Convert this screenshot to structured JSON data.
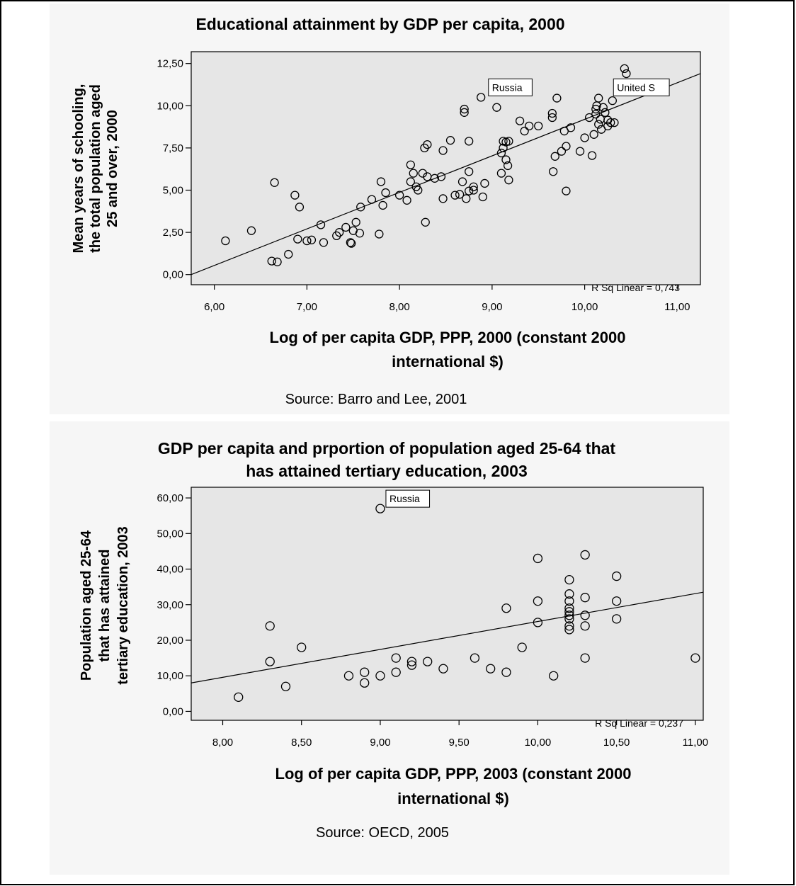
{
  "chart_data": [
    {
      "type": "scatter",
      "title": "Educational attainment by GDP per capita, 2000",
      "xlabel_lines": [
        "Log of per capita GDP, PPP, 2000 (constant 2000",
        "international $)"
      ],
      "ylabel_lines": [
        "Mean years of schooling,",
        "the total population aged",
        "25 and over, 2000"
      ],
      "xlim": [
        5.75,
        11.25
      ],
      "ylim": [
        -0.6,
        13.2
      ],
      "x_ticks": [
        6,
        7,
        8,
        9,
        10,
        11
      ],
      "x_tick_labels": [
        "6,00",
        "7,00",
        "8,00",
        "9,00",
        "10,00",
        "11,00"
      ],
      "y_ticks": [
        0,
        2.5,
        5,
        7.5,
        10,
        12.5
      ],
      "y_tick_labels": [
        "0,00",
        "2,50",
        "5,00",
        "7,50",
        "10,00",
        "12,50"
      ],
      "grid": false,
      "fit_line": {
        "x": [
          5.75,
          11.25
        ],
        "y": [
          0.0,
          11.9
        ]
      },
      "r_squared_label": "R Sq Linear = 0,743",
      "annotations": [
        {
          "label": "Russia",
          "x": 8.9,
          "y": 10.5
        },
        {
          "label": "United S",
          "x": 10.25,
          "y": 10.5
        }
      ],
      "source": "Source: Barro and Lee, 2001",
      "points": [
        [
          6.12,
          2.0
        ],
        [
          6.4,
          2.6
        ],
        [
          6.65,
          5.45
        ],
        [
          6.62,
          0.8
        ],
        [
          6.68,
          0.75
        ],
        [
          6.8,
          1.2
        ],
        [
          6.87,
          4.7
        ],
        [
          6.9,
          2.1
        ],
        [
          6.92,
          4.0
        ],
        [
          7.0,
          2.0
        ],
        [
          7.05,
          2.05
        ],
        [
          7.15,
          2.95
        ],
        [
          7.18,
          1.9
        ],
        [
          7.32,
          2.3
        ],
        [
          7.35,
          2.5
        ],
        [
          7.42,
          2.8
        ],
        [
          7.47,
          1.9
        ],
        [
          7.48,
          1.85
        ],
        [
          7.5,
          2.6
        ],
        [
          7.53,
          3.1
        ],
        [
          7.57,
          2.45
        ],
        [
          7.58,
          4.0
        ],
        [
          7.7,
          4.45
        ],
        [
          7.78,
          2.4
        ],
        [
          7.8,
          5.5
        ],
        [
          7.82,
          4.1
        ],
        [
          7.85,
          4.85
        ],
        [
          8.0,
          4.7
        ],
        [
          8.08,
          4.4
        ],
        [
          8.12,
          5.5
        ],
        [
          8.12,
          6.5
        ],
        [
          8.15,
          6.0
        ],
        [
          8.18,
          5.2
        ],
        [
          8.2,
          5.0
        ],
        [
          8.25,
          6.0
        ],
        [
          8.27,
          7.5
        ],
        [
          8.3,
          7.7
        ],
        [
          8.3,
          5.8
        ],
        [
          8.28,
          3.1
        ],
        [
          8.38,
          5.7
        ],
        [
          8.45,
          5.8
        ],
        [
          8.47,
          4.5
        ],
        [
          8.47,
          7.35
        ],
        [
          8.55,
          7.95
        ],
        [
          8.6,
          4.7
        ],
        [
          8.65,
          4.75
        ],
        [
          8.68,
          5.5
        ],
        [
          8.7,
          9.6
        ],
        [
          8.7,
          9.8
        ],
        [
          8.72,
          4.5
        ],
        [
          8.75,
          7.9
        ],
        [
          8.75,
          4.95
        ],
        [
          8.75,
          6.1
        ],
        [
          8.8,
          5.0
        ],
        [
          8.8,
          5.2
        ],
        [
          8.88,
          10.5
        ],
        [
          8.9,
          4.6
        ],
        [
          8.92,
          5.4
        ],
        [
          9.05,
          9.9
        ],
        [
          9.1,
          6.0
        ],
        [
          9.1,
          7.2
        ],
        [
          9.12,
          7.5
        ],
        [
          9.12,
          7.9
        ],
        [
          9.15,
          7.85
        ],
        [
          9.15,
          6.8
        ],
        [
          9.17,
          6.45
        ],
        [
          9.18,
          5.6
        ],
        [
          9.18,
          7.9
        ],
        [
          9.3,
          9.1
        ],
        [
          9.35,
          8.5
        ],
        [
          9.4,
          8.8
        ],
        [
          9.5,
          8.8
        ],
        [
          9.65,
          9.3
        ],
        [
          9.65,
          9.55
        ],
        [
          9.66,
          6.1
        ],
        [
          9.68,
          7.0
        ],
        [
          9.7,
          10.45
        ],
        [
          9.75,
          7.3
        ],
        [
          9.78,
          8.5
        ],
        [
          9.8,
          4.95
        ],
        [
          9.8,
          7.6
        ],
        [
          9.85,
          8.7
        ],
        [
          9.95,
          7.3
        ],
        [
          10.0,
          8.1
        ],
        [
          10.05,
          9.3
        ],
        [
          10.08,
          7.05
        ],
        [
          10.1,
          8.3
        ],
        [
          10.12,
          9.5
        ],
        [
          10.12,
          9.8
        ],
        [
          10.13,
          10.0
        ],
        [
          10.15,
          10.45
        ],
        [
          10.15,
          8.9
        ],
        [
          10.17,
          9.2
        ],
        [
          10.18,
          8.6
        ],
        [
          10.2,
          9.9
        ],
        [
          10.22,
          9.6
        ],
        [
          10.25,
          8.8
        ],
        [
          10.25,
          9.15
        ],
        [
          10.28,
          9.0
        ],
        [
          10.3,
          10.3
        ],
        [
          10.32,
          9.0
        ],
        [
          10.43,
          12.2
        ],
        [
          10.45,
          11.9
        ]
      ]
    },
    {
      "type": "scatter",
      "title_lines": [
        "GDP per capita and prportion of population aged 25-64 that",
        "has attained tertiary education,  2003"
      ],
      "xlabel_lines": [
        "Log of per capita GDP, PPP, 2003 (constant 2000",
        "international $)"
      ],
      "ylabel_lines": [
        "Population aged 25-64",
        "that has attained",
        "tertiary education, 2003"
      ],
      "xlim": [
        7.8,
        11.05
      ],
      "ylim": [
        -2.5,
        63
      ],
      "x_ticks": [
        8.0,
        8.5,
        9.0,
        9.5,
        10.0,
        10.5,
        11.0
      ],
      "x_tick_labels": [
        "8,00",
        "8,50",
        "9,00",
        "9,50",
        "10,00",
        "10,50",
        "11,00"
      ],
      "y_ticks": [
        0,
        10,
        20,
        30,
        40,
        50,
        60
      ],
      "y_tick_labels": [
        "0,00",
        "10,00",
        "20,00",
        "30,00",
        "40,00",
        "50,00",
        "60,00"
      ],
      "grid": false,
      "fit_line": {
        "x": [
          7.8,
          11.05
        ],
        "y": [
          8.0,
          33.5
        ]
      },
      "r_squared_label": "R Sq Linear = 0,237",
      "annotations": [
        {
          "label": "Russia",
          "x": 9.0,
          "y": 57
        }
      ],
      "source": "Source: OECD, 2005",
      "points": [
        [
          8.1,
          4
        ],
        [
          8.3,
          24
        ],
        [
          8.3,
          14
        ],
        [
          8.4,
          7
        ],
        [
          8.5,
          18
        ],
        [
          8.8,
          10
        ],
        [
          8.9,
          11
        ],
        [
          8.9,
          8
        ],
        [
          9.0,
          10
        ],
        [
          9.0,
          57
        ],
        [
          9.1,
          15
        ],
        [
          9.1,
          11
        ],
        [
          9.2,
          14
        ],
        [
          9.2,
          13
        ],
        [
          9.3,
          14
        ],
        [
          9.4,
          12
        ],
        [
          9.6,
          15
        ],
        [
          9.7,
          12
        ],
        [
          9.8,
          11
        ],
        [
          9.8,
          29
        ],
        [
          9.9,
          18
        ],
        [
          10.0,
          43
        ],
        [
          10.0,
          31
        ],
        [
          10.0,
          25
        ],
        [
          10.1,
          10
        ],
        [
          10.2,
          37
        ],
        [
          10.2,
          33
        ],
        [
          10.2,
          31
        ],
        [
          10.2,
          29
        ],
        [
          10.2,
          28
        ],
        [
          10.2,
          27
        ],
        [
          10.2,
          26
        ],
        [
          10.2,
          24
        ],
        [
          10.2,
          23
        ],
        [
          10.3,
          44
        ],
        [
          10.3,
          32
        ],
        [
          10.3,
          27
        ],
        [
          10.3,
          24
        ],
        [
          10.3,
          15
        ],
        [
          10.5,
          38
        ],
        [
          10.5,
          31
        ],
        [
          10.5,
          26
        ],
        [
          11.0,
          15
        ]
      ]
    }
  ]
}
